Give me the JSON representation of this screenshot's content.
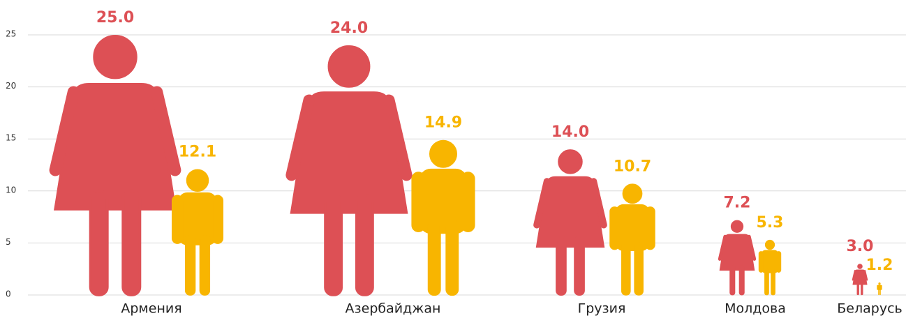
{
  "chart_data": {
    "type": "pictograph",
    "categories": [
      "Армения",
      "Азербайджан",
      "Грузия",
      "Молдова",
      "Беларусь"
    ],
    "series": [
      {
        "color": "#dd5055",
        "values": [
          25,
          24,
          14,
          7.2,
          3
        ],
        "value_labels": [
          "25.0",
          "24.0",
          "14.0",
          "7.2",
          "3.0"
        ]
      },
      {
        "color": "#f8b500",
        "values": [
          12.1,
          14.9,
          10.7,
          5.3,
          1.2
        ],
        "value_labels": [
          "12.1",
          "14.9",
          "10.7",
          "5.3",
          "1.2"
        ]
      }
    ],
    "ylim": [
      0,
      25
    ],
    "yticks": [
      0,
      5,
      10,
      15,
      20,
      25
    ],
    "grid": true
  }
}
